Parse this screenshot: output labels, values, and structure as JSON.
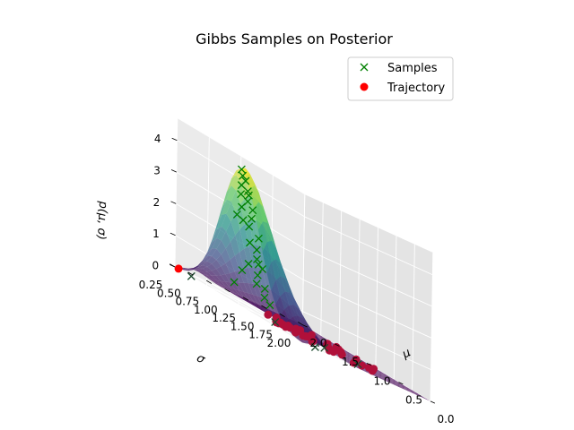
{
  "chart_data": {
    "type": "surface3d",
    "title": "Gibbs Samples on Posterior",
    "xlabel": "μ",
    "ylabel": "σ",
    "zlabel": "p(μ, σ)",
    "x_ticks": [
      "0.0",
      "0.5",
      "1.0",
      "1.5",
      "2.0"
    ],
    "y_ticks": [
      "0.25",
      "0.50",
      "0.75",
      "1.00",
      "1.25",
      "1.50",
      "1.75",
      "2.00"
    ],
    "z_ticks": [
      "0",
      "1",
      "2",
      "3",
      "4"
    ],
    "xlim": [
      2.0,
      0.0
    ],
    "ylim": [
      0.25,
      2.0
    ],
    "zlim": [
      0,
      4.6
    ],
    "legend_position": "top-right",
    "legend": [
      {
        "label": "Samples",
        "marker": "x",
        "color": "#008000"
      },
      {
        "label": "Trajectory",
        "marker": "o",
        "color": "#ff0000"
      }
    ],
    "surface": {
      "colormap": "viridis",
      "peak_mu": 1.0,
      "peak_sigma": 0.3,
      "peak_density": 4.4
    },
    "samples": [
      [
        1.0,
        0.26,
        4.3
      ],
      [
        0.98,
        0.3,
        4.0
      ],
      [
        1.02,
        0.28,
        3.8
      ],
      [
        0.95,
        0.32,
        3.6
      ],
      [
        1.05,
        0.3,
        3.5
      ],
      [
        0.92,
        0.35,
        3.2
      ],
      [
        1.08,
        0.34,
        3.1
      ],
      [
        0.97,
        0.38,
        2.9
      ],
      [
        1.0,
        0.35,
        3.7
      ],
      [
        1.03,
        0.4,
        2.6
      ],
      [
        0.9,
        0.42,
        2.4
      ],
      [
        1.1,
        0.38,
        2.7
      ],
      [
        0.96,
        0.45,
        2.0
      ],
      [
        1.06,
        0.44,
        2.1
      ],
      [
        0.99,
        0.48,
        1.7
      ],
      [
        0.88,
        0.46,
        1.5
      ],
      [
        1.12,
        0.48,
        1.4
      ],
      [
        1.02,
        0.52,
        1.2
      ],
      [
        0.94,
        0.55,
        0.9
      ],
      [
        1.08,
        0.56,
        0.9
      ],
      [
        0.85,
        0.38,
        1.6
      ],
      [
        1.15,
        0.42,
        1.1
      ],
      [
        1.0,
        0.6,
        0.6
      ],
      [
        0.8,
        0.5,
        0.5
      ],
      [
        1.2,
        0.36,
        0.6
      ],
      [
        0.6,
        0.4,
        0.1
      ],
      [
        0.4,
        0.9,
        0.05
      ],
      [
        0.45,
        1.4,
        0.0
      ],
      [
        0.2,
        0.6,
        0.0
      ],
      [
        1.8,
        0.3,
        0.0
      ],
      [
        1.05,
        0.32,
        4.1
      ],
      [
        0.93,
        0.29,
        3.4
      ],
      [
        1.07,
        0.27,
        2.8
      ]
    ],
    "trajectory": [
      [
        1.0,
        0.8,
        0.0
      ],
      [
        0.95,
        0.85,
        0.0
      ],
      [
        1.05,
        0.9,
        0.0
      ],
      [
        0.9,
        0.95,
        0.0
      ],
      [
        1.1,
        0.85,
        0.0
      ],
      [
        0.85,
        1.0,
        0.0
      ],
      [
        1.15,
        0.95,
        0.0
      ],
      [
        0.92,
        1.1,
        0.0
      ],
      [
        1.0,
        1.2,
        0.0
      ],
      [
        0.8,
        1.3,
        0.0
      ],
      [
        1.2,
        1.1,
        0.0
      ],
      [
        0.75,
        1.05,
        0.0
      ],
      [
        1.25,
        1.25,
        0.0
      ],
      [
        0.7,
        1.4,
        0.0
      ],
      [
        1.3,
        1.35,
        0.0
      ],
      [
        0.65,
        0.95,
        0.0
      ],
      [
        0.6,
        1.2,
        0.0
      ],
      [
        1.4,
        1.0,
        0.0
      ],
      [
        0.5,
        1.5,
        0.0
      ],
      [
        0.55,
        1.1,
        0.0
      ],
      [
        1.05,
        1.5,
        0.0
      ],
      [
        0.95,
        1.6,
        0.0
      ],
      [
        1.1,
        1.7,
        0.0
      ],
      [
        0.88,
        1.75,
        0.0
      ],
      [
        1.5,
        1.2,
        0.0
      ],
      [
        0.4,
        1.3,
        0.0
      ],
      [
        0.45,
        1.6,
        0.0
      ],
      [
        1.35,
        1.55,
        0.0
      ],
      [
        0.72,
        1.85,
        0.0
      ],
      [
        1.25,
        1.8,
        0.0
      ],
      [
        0.98,
        0.75,
        0.0
      ],
      [
        1.08,
        1.02,
        0.0
      ],
      [
        0.83,
        0.88,
        0.0
      ],
      [
        1.18,
        1.62,
        0.0
      ],
      [
        0.62,
        1.7,
        0.0
      ],
      [
        2.0,
        0.3,
        0.0
      ]
    ]
  }
}
